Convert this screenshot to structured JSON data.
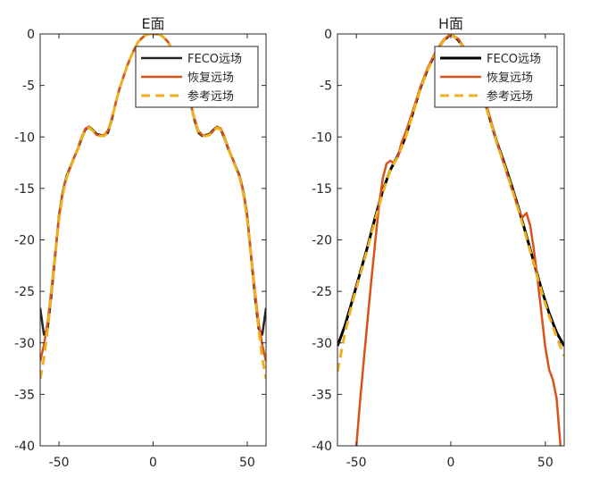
{
  "chart_data": [
    {
      "type": "line",
      "title": "E面",
      "xlim": [
        -60,
        60
      ],
      "ylim": [
        -40,
        0
      ],
      "xticks": [
        -50,
        0,
        50
      ],
      "yticks": [
        0,
        -5,
        -10,
        -15,
        -20,
        -25,
        -30,
        -35,
        -40
      ],
      "grid": false,
      "legend_position": "top-right",
      "series": [
        {
          "name": "FECO远场",
          "color": "#262626",
          "dash": "solid",
          "x": [
            -60,
            -58,
            -56,
            -54,
            -52,
            -50,
            -48,
            -46,
            -44,
            -42,
            -40,
            -38,
            -36,
            -34,
            -32,
            -30,
            -28,
            -26,
            -24,
            -22,
            -20,
            -18,
            -16,
            -14,
            -12,
            -10,
            -8,
            -6,
            -4,
            -2,
            0,
            2,
            4,
            6,
            8,
            10,
            12,
            14,
            16,
            18,
            20,
            22,
            24,
            26,
            28,
            30,
            32,
            34,
            36,
            38,
            40,
            42,
            44,
            46,
            48,
            50,
            52,
            54,
            56,
            58,
            60
          ],
          "y": [
            -26.6,
            -29.2,
            -28.6,
            -25.4,
            -21.5,
            -17.6,
            -15.3,
            -13.8,
            -12.9,
            -12.0,
            -11.2,
            -10.2,
            -9.3,
            -9.0,
            -9.3,
            -9.7,
            -9.8,
            -9.9,
            -9.6,
            -8.4,
            -6.8,
            -5.4,
            -4.3,
            -3.2,
            -2.3,
            -1.5,
            -0.8,
            -0.4,
            -0.1,
            0.0,
            0.0,
            0.0,
            -0.1,
            -0.4,
            -0.8,
            -1.5,
            -2.3,
            -3.2,
            -4.3,
            -5.4,
            -6.8,
            -8.4,
            -9.6,
            -9.9,
            -9.8,
            -9.7,
            -9.3,
            -9.0,
            -9.3,
            -10.2,
            -11.2,
            -12.0,
            -12.9,
            -13.8,
            -15.3,
            -17.6,
            -21.5,
            -25.4,
            -28.6,
            -29.2,
            -26.6
          ]
        },
        {
          "name": "恢复远场",
          "color": "#D95319",
          "dash": "solid",
          "x": [
            -60,
            -58,
            -56,
            -54,
            -52,
            -50,
            -48,
            -46,
            -44,
            -42,
            -40,
            -38,
            -36,
            -34,
            -32,
            -30,
            -28,
            -26,
            -24,
            -22,
            -20,
            -18,
            -16,
            -14,
            -12,
            -10,
            -8,
            -6,
            -4,
            -2,
            0,
            2,
            4,
            6,
            8,
            10,
            12,
            14,
            16,
            18,
            20,
            22,
            24,
            26,
            28,
            30,
            32,
            34,
            36,
            38,
            40,
            42,
            44,
            46,
            48,
            50,
            52,
            54,
            56,
            58,
            60
          ],
          "y": [
            -31.8,
            -30.2,
            -28.0,
            -24.8,
            -21.2,
            -17.8,
            -15.4,
            -13.9,
            -13.0,
            -12.0,
            -11.1,
            -10.0,
            -9.2,
            -9.0,
            -9.4,
            -9.8,
            -9.9,
            -9.8,
            -9.4,
            -8.2,
            -6.8,
            -5.4,
            -4.3,
            -3.2,
            -2.3,
            -1.5,
            -0.8,
            -0.4,
            -0.1,
            0.0,
            0.0,
            0.0,
            -0.1,
            -0.4,
            -0.8,
            -1.5,
            -2.3,
            -3.2,
            -4.3,
            -5.4,
            -6.8,
            -8.2,
            -9.4,
            -9.8,
            -9.9,
            -9.8,
            -9.4,
            -9.0,
            -9.2,
            -10.0,
            -11.1,
            -12.0,
            -13.0,
            -13.9,
            -15.4,
            -17.8,
            -21.2,
            -24.8,
            -28.0,
            -30.2,
            -31.8
          ]
        },
        {
          "name": "参考远场",
          "color": "#EDB120",
          "dash": "dashed",
          "x": [
            -60,
            -58,
            -56,
            -54,
            -52,
            -50,
            -48,
            -46,
            -44,
            -42,
            -40,
            -38,
            -36,
            -34,
            -32,
            -30,
            -28,
            -26,
            -24,
            -22,
            -20,
            -18,
            -16,
            -14,
            -12,
            -10,
            -8,
            -6,
            -4,
            -2,
            0,
            2,
            4,
            6,
            8,
            10,
            12,
            14,
            16,
            18,
            20,
            22,
            24,
            26,
            28,
            30,
            32,
            34,
            36,
            38,
            40,
            42,
            44,
            46,
            48,
            50,
            52,
            54,
            56,
            58,
            60
          ],
          "y": [
            -33.5,
            -31.5,
            -28.6,
            -25.2,
            -21.5,
            -18.0,
            -15.6,
            -14.0,
            -13.0,
            -12.1,
            -11.2,
            -10.1,
            -9.3,
            -9.1,
            -9.4,
            -9.8,
            -9.9,
            -9.9,
            -9.5,
            -8.3,
            -6.8,
            -5.4,
            -4.3,
            -3.2,
            -2.3,
            -1.5,
            -0.8,
            -0.4,
            -0.1,
            0.0,
            0.0,
            0.0,
            -0.1,
            -0.4,
            -0.8,
            -1.5,
            -2.3,
            -3.2,
            -4.3,
            -5.4,
            -6.8,
            -8.3,
            -9.5,
            -9.9,
            -9.9,
            -9.8,
            -9.4,
            -9.1,
            -9.3,
            -10.1,
            -11.2,
            -12.1,
            -13.0,
            -14.0,
            -15.6,
            -18.0,
            -21.5,
            -25.2,
            -28.6,
            -31.5,
            -33.5
          ]
        }
      ]
    },
    {
      "type": "line",
      "title": "H面",
      "xlim": [
        -60,
        60
      ],
      "ylim": [
        -40,
        0
      ],
      "xticks": [
        -50,
        0,
        50
      ],
      "yticks": [
        0,
        -5,
        -10,
        -15,
        -20,
        -25,
        -30,
        -35,
        -40
      ],
      "grid": false,
      "legend_position": "top-right",
      "series": [
        {
          "name": "FECO远场",
          "color": "#000000",
          "dash": "solid",
          "x": [
            -60,
            -56,
            -52,
            -48,
            -44,
            -40,
            -36,
            -32,
            -28,
            -24,
            -20,
            -16,
            -12,
            -8,
            -4,
            0,
            4,
            8,
            12,
            16,
            20,
            24,
            28,
            32,
            36,
            40,
            44,
            48,
            52,
            56,
            60
          ],
          "y": [
            -30.3,
            -28.3,
            -25.8,
            -23.2,
            -20.6,
            -17.8,
            -15.2,
            -13.2,
            -11.8,
            -10.0,
            -7.6,
            -5.2,
            -3.3,
            -1.8,
            -0.7,
            0.0,
            -0.6,
            -1.7,
            -3.3,
            -5.3,
            -7.8,
            -10.3,
            -12.4,
            -14.6,
            -17.0,
            -19.6,
            -22.2,
            -24.8,
            -27.1,
            -29.0,
            -30.3
          ]
        },
        {
          "name": "恢复远场",
          "color": "#D95319",
          "dash": "solid",
          "x": [
            -50,
            -48,
            -46,
            -44,
            -42,
            -40,
            -38,
            -36,
            -34,
            -32,
            -30,
            -28,
            -26,
            -24,
            -20,
            -16,
            -12,
            -8,
            -4,
            0,
            4,
            8,
            12,
            16,
            20,
            24,
            28,
            32,
            34,
            36,
            38,
            40,
            42,
            44,
            46,
            48,
            50,
            52,
            54,
            56,
            58
          ],
          "y": [
            -40.0,
            -35.6,
            -31.6,
            -27.6,
            -23.8,
            -20.2,
            -16.6,
            -14.0,
            -12.6,
            -12.3,
            -12.6,
            -11.9,
            -10.5,
            -9.6,
            -7.4,
            -5.1,
            -3.2,
            -1.7,
            -0.6,
            0.0,
            -0.5,
            -1.6,
            -3.2,
            -5.2,
            -7.6,
            -10.3,
            -12.6,
            -14.9,
            -16.0,
            -17.2,
            -17.8,
            -17.4,
            -18.6,
            -21.0,
            -24.0,
            -27.2,
            -30.4,
            -32.6,
            -33.6,
            -35.4,
            -40.0
          ]
        },
        {
          "name": "参考远场",
          "color": "#EDB120",
          "dash": "dashed",
          "x": [
            -60,
            -56,
            -52,
            -48,
            -44,
            -40,
            -36,
            -32,
            -28,
            -24,
            -20,
            -16,
            -12,
            -8,
            -4,
            0,
            4,
            8,
            12,
            16,
            20,
            24,
            28,
            32,
            36,
            40,
            44,
            48,
            52,
            56,
            60
          ],
          "y": [
            -32.8,
            -29.0,
            -26.0,
            -23.4,
            -20.8,
            -18.0,
            -15.4,
            -13.2,
            -11.9,
            -10.1,
            -7.7,
            -5.3,
            -3.4,
            -1.9,
            -0.7,
            0.0,
            -0.6,
            -1.8,
            -3.4,
            -5.4,
            -7.9,
            -10.4,
            -12.6,
            -14.8,
            -17.2,
            -19.8,
            -22.4,
            -25.0,
            -27.4,
            -29.4,
            -31.3
          ]
        }
      ]
    }
  ]
}
